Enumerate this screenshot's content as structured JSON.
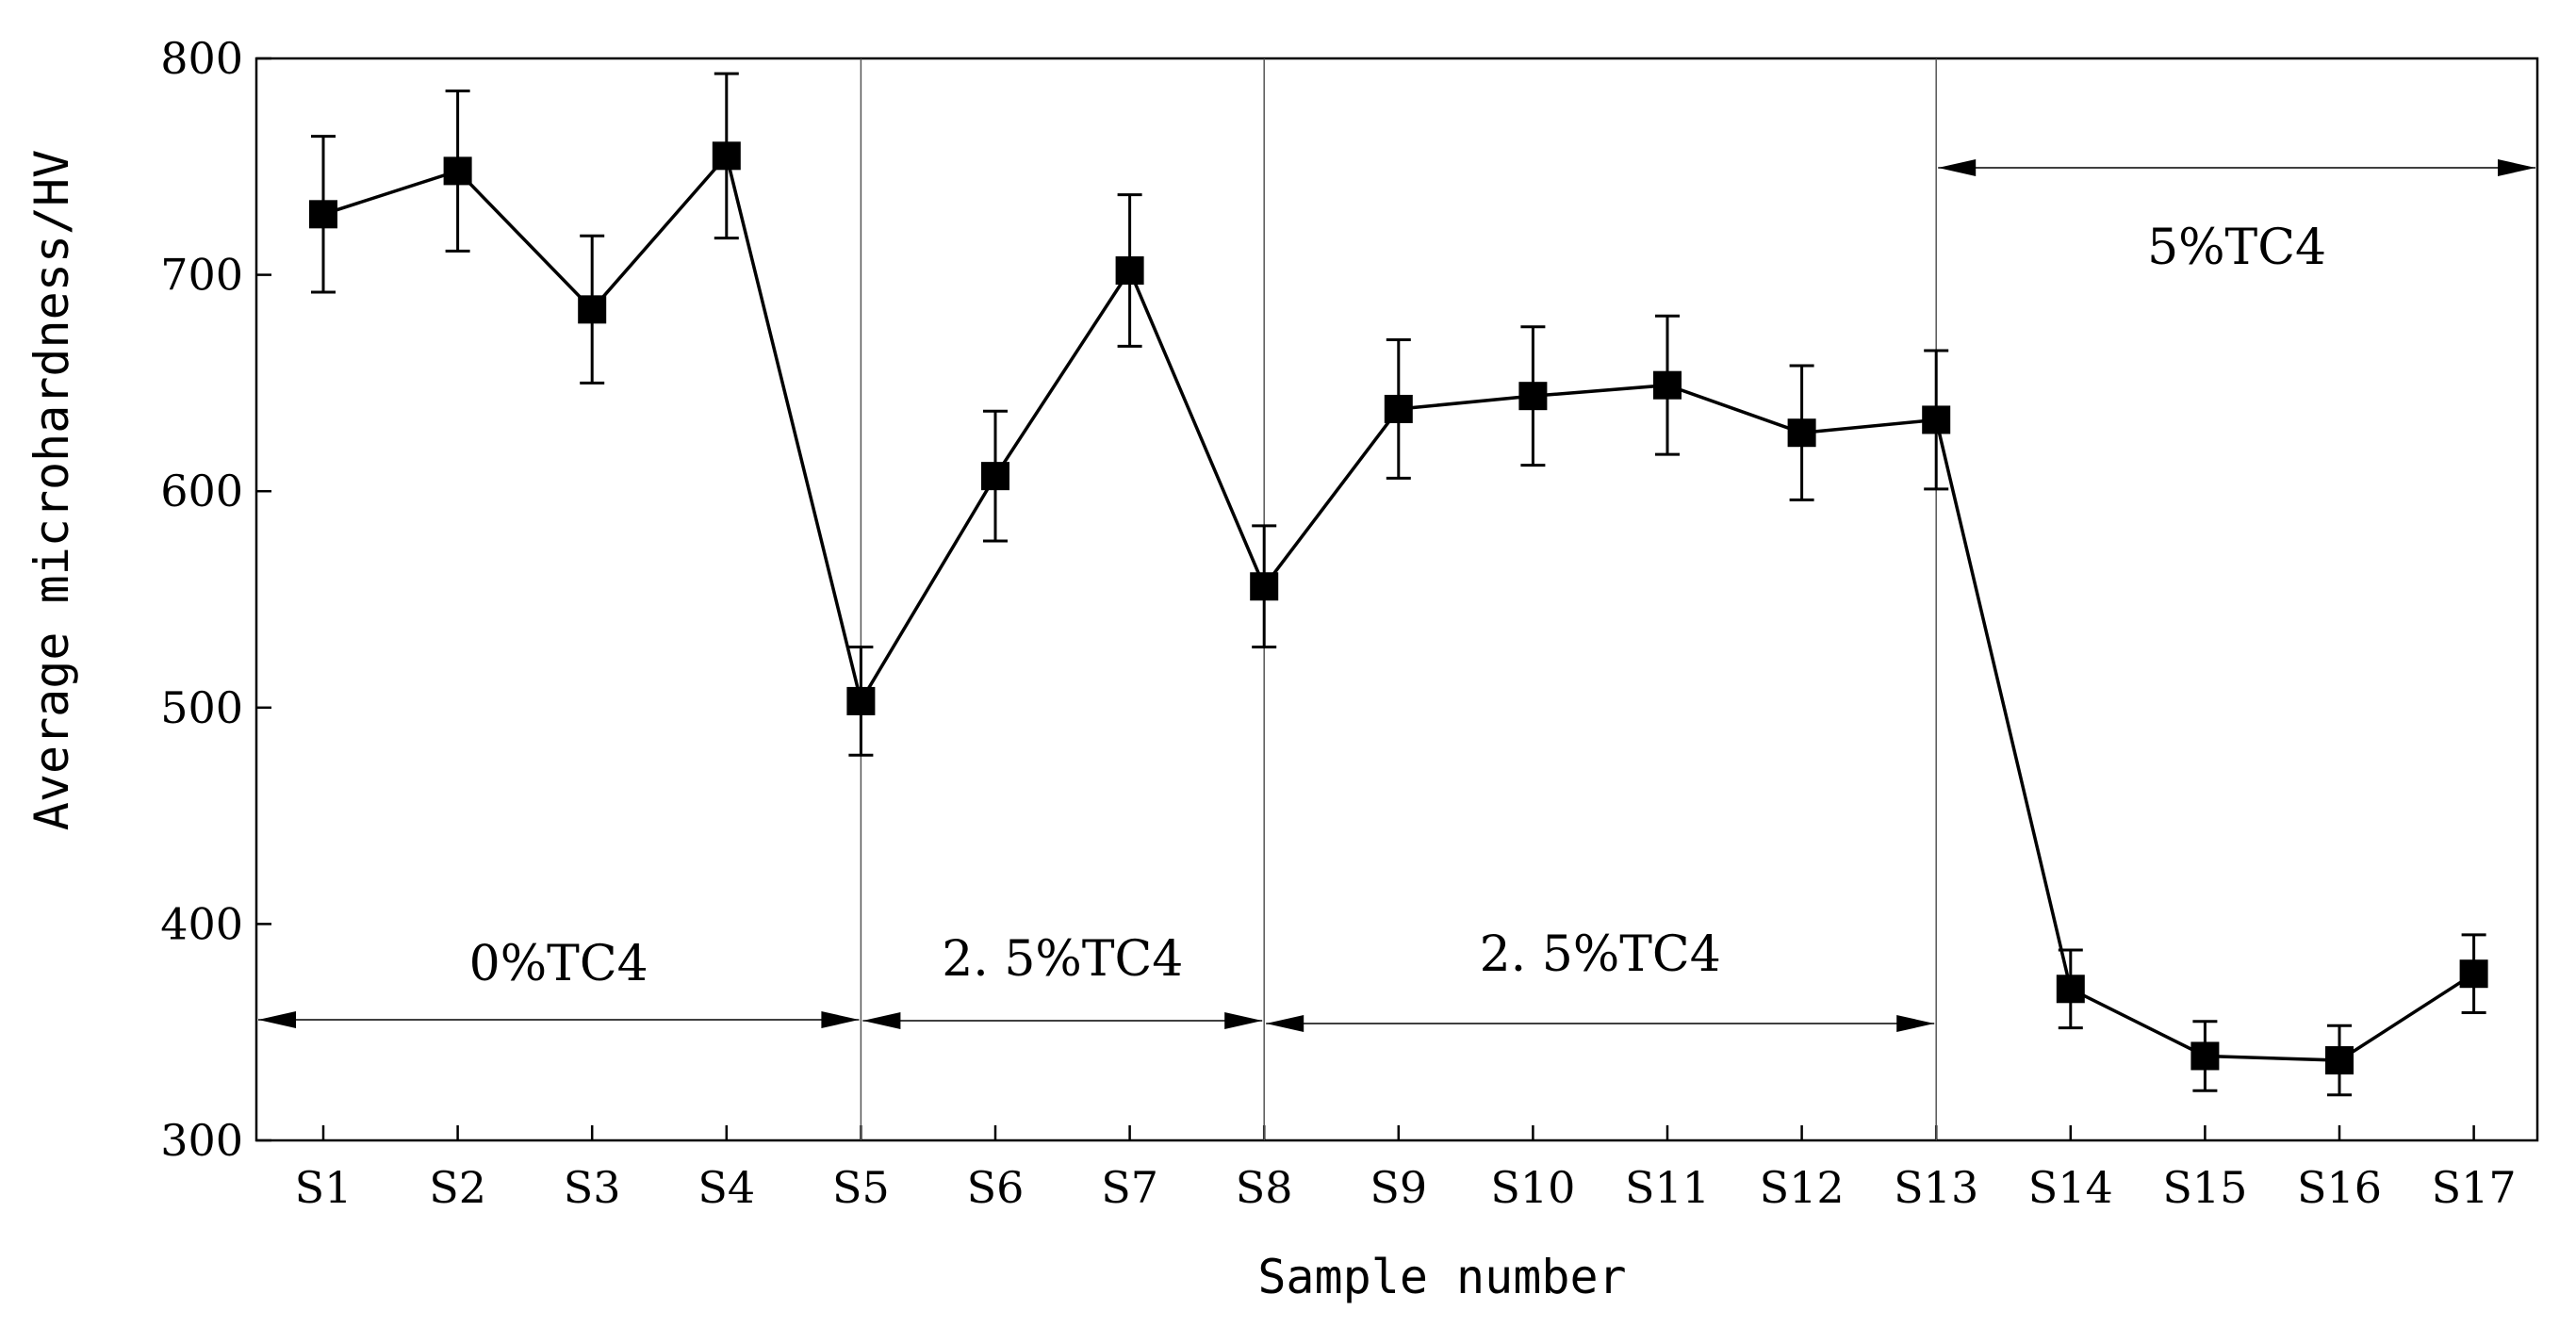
{
  "chart_data": {
    "type": "line",
    "title": "",
    "xlabel": "Sample number",
    "ylabel": "Average microhardness/HV",
    "ylim": [
      300,
      800
    ],
    "yticks": [
      300,
      400,
      500,
      600,
      700,
      800
    ],
    "categories": [
      "S1",
      "S2",
      "S3",
      "S4",
      "S5",
      "S6",
      "S7",
      "S8",
      "S9",
      "S10",
      "S11",
      "S12",
      "S13",
      "S14",
      "S15",
      "S16",
      "S17"
    ],
    "series": [
      {
        "name": "Average microhardness",
        "marker": "square",
        "color": "#000000",
        "values": [
          728,
          748,
          684,
          755,
          503,
          607,
          702,
          556,
          638,
          644,
          649,
          627,
          633,
          370,
          339,
          337,
          377
        ],
        "error": [
          36,
          37,
          34,
          38,
          25,
          30,
          35,
          28,
          32,
          32,
          32,
          31,
          32,
          18,
          16,
          16,
          18
        ]
      }
    ],
    "regions": [
      {
        "label": "0%TC4",
        "from": "S1",
        "to": "S5"
      },
      {
        "label": "2. 5%TC4",
        "from": "S5",
        "to": "S8"
      },
      {
        "label": "2. 5%TC4",
        "from": "S8",
        "to": "S13"
      },
      {
        "label": "5%TC4",
        "from": "S13",
        "to": "S17"
      }
    ],
    "region_boundaries": [
      "S5",
      "S8",
      "S13"
    ],
    "grid": false
  }
}
